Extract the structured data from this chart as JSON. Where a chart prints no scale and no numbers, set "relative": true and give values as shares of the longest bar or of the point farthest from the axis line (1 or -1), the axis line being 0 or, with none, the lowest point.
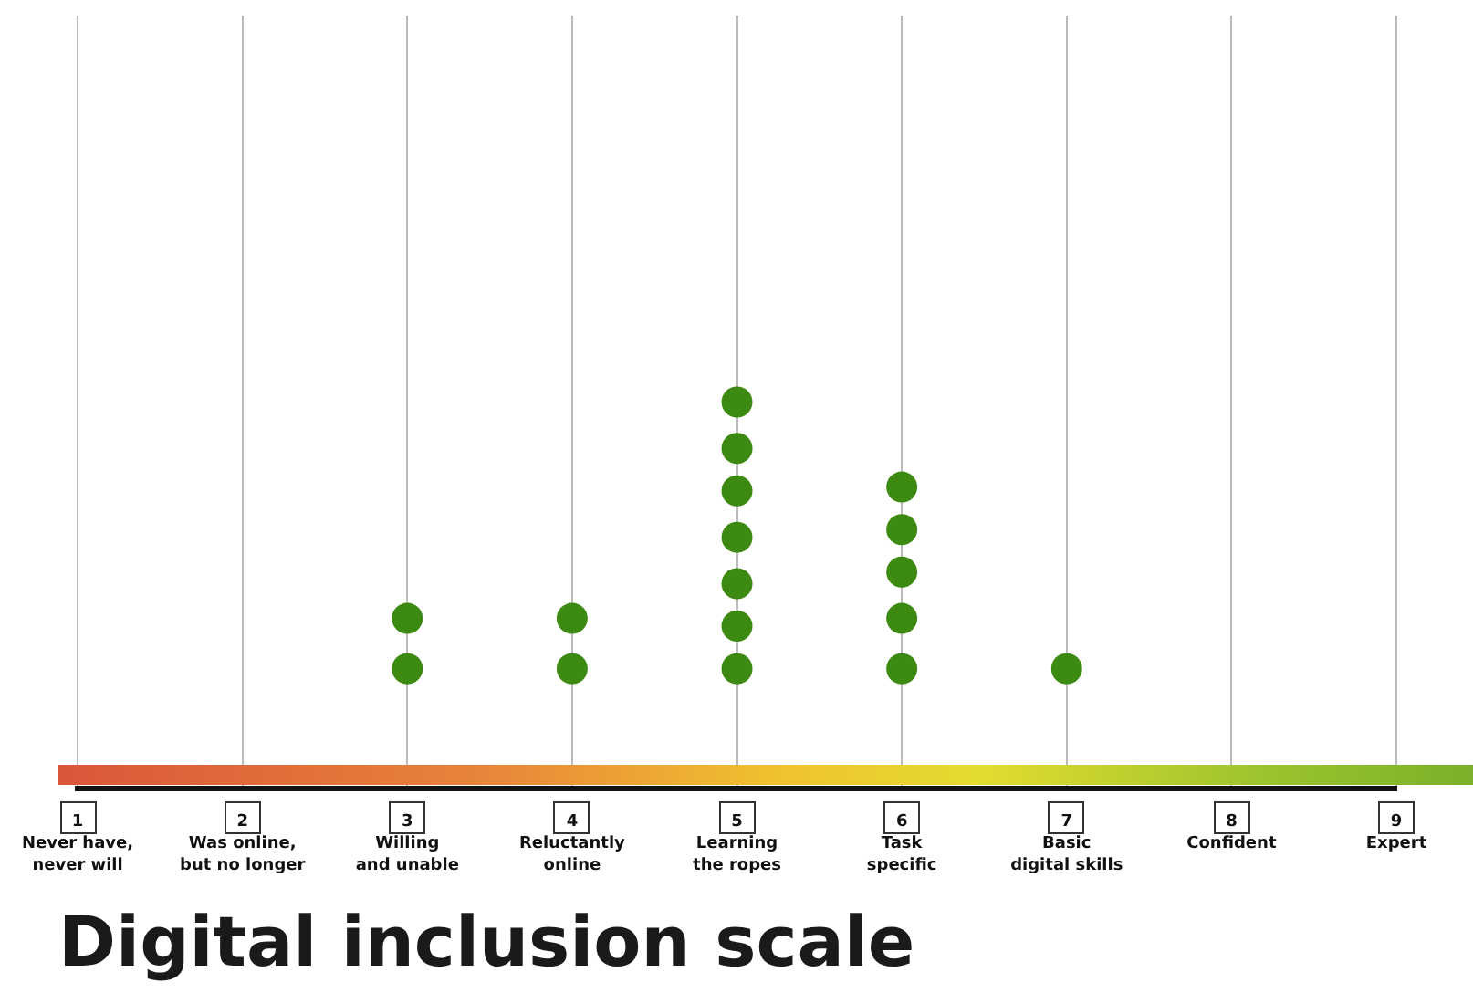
{
  "chart_data": {
    "type": "scatter",
    "title": "Digital inclusion scale",
    "relative": true,
    "grid": "x",
    "marker": "circle",
    "categories": [
      "1\nNever have,\nnever will",
      "2\nWas online,\nbut no longer",
      "3\nWilling\nand unable",
      "4\nReluctantly\nonline",
      "5\nLearning\nthe ropes",
      "6\nTask\nspecific",
      "7\nBasic\ndigital skills",
      "8\nConfident",
      "9\nExpert"
    ],
    "series": [
      {
        "color": "#3d8a12",
        "x": [
          "3\nWilling\nand unable",
          "3\nWilling\nand unable",
          "4\nReluctantly\nonline",
          "4\nReluctantly\nonline",
          "5\nLearning\nthe ropes",
          "5\nLearning\nthe ropes",
          "5\nLearning\nthe ropes",
          "5\nLearning\nthe ropes",
          "5\nLearning\nthe ropes",
          "5\nLearning\nthe ropes",
          "5\nLearning\nthe ropes",
          "6\nTask\nspecific",
          "6\nTask\nspecific",
          "6\nTask\nspecific",
          "6\nTask\nspecific",
          "6\nTask\nspecific",
          "7\nBasic\ndigital skills"
        ],
        "values": [
          0.31,
          0.44,
          0.31,
          0.44,
          0.31,
          0.42,
          0.53,
          0.65,
          0.77,
          0.88,
          1,
          0.31,
          0.44,
          0.56,
          0.67,
          0.78,
          0.31
        ]
      }
    ]
  }
}
